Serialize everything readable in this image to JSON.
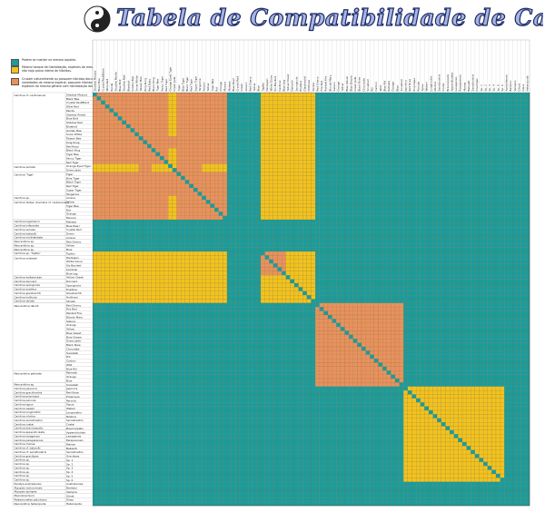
{
  "title": "Tabela de Compatibilidade de Camarões",
  "legend": [
    {
      "color": "#1a9c9c",
      "text": "Podem se manter no mesmo aquário."
    },
    {
      "color": "#f2c21e",
      "text": "Mesmo tanque de hibridização, espécies do mesmo gênero, embora não haja prova inteira de híbridos."
    },
    {
      "color": "#e9915c",
      "text": "Cruzam naturalmente ou possuem híbridos documentados, variedades da mesma espécie; possuem híbridos em crossover, ou espécies do mesmo gênero com hibridização documentada."
    }
  ],
  "chart_data": {
    "type": "heatmap",
    "colors": {
      "compatible": "#1a9c9c",
      "same_genus": "#f2c21e",
      "hybridize": "#e9915c",
      "diagonal": "#1a9c9c"
    },
    "left_groups": [
      {
        "label": "Caridina cf. cantonensis",
        "start": 0,
        "end": 17
      },
      {
        "label": "Caridina serrata",
        "start": 18,
        "end": 19
      },
      {
        "label": "Caridina 'Tiger'",
        "start": 20,
        "end": 25
      },
      {
        "label": "Caridina sp.",
        "start": 26,
        "end": 26
      },
      {
        "label": "Caridina 'Rotes' (Caridina cf. cantonensis)",
        "start": 27,
        "end": 31
      },
      {
        "label": "Caridina logemanni",
        "start": 32,
        "end": 32
      },
      {
        "label": "Caridina trifasciata",
        "start": 33,
        "end": 33
      },
      {
        "label": "Caridina serrata",
        "start": 34,
        "end": 34
      },
      {
        "label": "Caridina babaulti",
        "start": 35,
        "end": 35
      },
      {
        "label": "Caridina multidentata",
        "start": 36,
        "end": 36
      },
      {
        "label": "Neocaridina sp.",
        "start": 37,
        "end": 37
      },
      {
        "label": "Neocaridina sp.",
        "start": 38,
        "end": 38
      },
      {
        "label": "Neocaridina sp.",
        "start": 39,
        "end": 39
      },
      {
        "label": "Caridina sp. 'Tupfen'",
        "start": 40,
        "end": 40
      },
      {
        "label": "Caridina sulawesi",
        "start": 41,
        "end": 45
      },
      {
        "label": "Caridina woltereckae",
        "start": 46,
        "end": 46
      },
      {
        "label": "Caridina dennerli",
        "start": 47,
        "end": 47
      },
      {
        "label": "Caridina spongicola",
        "start": 48,
        "end": 48
      },
      {
        "label": "Caridina ensifera",
        "start": 49,
        "end": 49
      },
      {
        "label": "Caridina glaubrechti",
        "start": 50,
        "end": 50
      },
      {
        "label": "Caridina holthuisi",
        "start": 51,
        "end": 51
      },
      {
        "label": "Caridina striata",
        "start": 52,
        "end": 52
      },
      {
        "label": "Neocaridina davidi",
        "start": 53,
        "end": 69
      },
      {
        "label": "Neocaridina palmata",
        "start": 70,
        "end": 72
      },
      {
        "label": "Neocaridina sp.",
        "start": 73,
        "end": 73
      },
      {
        "label": "Caridina japonica",
        "start": 74,
        "end": 74
      },
      {
        "label": "Caridina gracilirostris",
        "start": 75,
        "end": 75
      },
      {
        "label": "Caridina propinqua",
        "start": 76,
        "end": 76
      },
      {
        "label": "Caridina parvula",
        "start": 77,
        "end": 77
      },
      {
        "label": "Caridina typus",
        "start": 78,
        "end": 78
      },
      {
        "label": "Caridina weberi",
        "start": 79,
        "end": 79
      },
      {
        "label": "Caridina longirostris",
        "start": 80,
        "end": 80
      },
      {
        "label": "Caridina nilotica",
        "start": 81,
        "end": 81
      },
      {
        "label": "Caridina serratirostris",
        "start": 82,
        "end": 82
      },
      {
        "label": "Caridina costai",
        "start": 83,
        "end": 83
      },
      {
        "label": "Caridina brevicarpalis",
        "start": 84,
        "end": 84
      },
      {
        "label": "Caridina appendiculata",
        "start": 85,
        "end": 85
      },
      {
        "label": "Caridina laoagensis",
        "start": 86,
        "end": 86
      },
      {
        "label": "Caridina pareparensis",
        "start": 87,
        "end": 87
      },
      {
        "label": "Caridina mariae",
        "start": 88,
        "end": 88
      },
      {
        "label": "Caridina cf. babaulti",
        "start": 89,
        "end": 89
      },
      {
        "label": "Caridina cf. serratirostris",
        "start": 90,
        "end": 90
      },
      {
        "label": "Caridina gracilipes",
        "start": 91,
        "end": 91
      },
      {
        "label": "Caridina sp.",
        "start": 92,
        "end": 92
      },
      {
        "label": "Caridina sp.",
        "start": 93,
        "end": 93
      },
      {
        "label": "Caridina sp.",
        "start": 94,
        "end": 94
      },
      {
        "label": "Caridina sp.",
        "start": 95,
        "end": 95
      },
      {
        "label": "Caridina sp.",
        "start": 96,
        "end": 96
      },
      {
        "label": "Caridina sp.",
        "start": 97,
        "end": 97
      },
      {
        "label": "Paratya australiensis",
        "start": 98,
        "end": 98
      },
      {
        "label": "Atyopsis moluccensis",
        "start": 99,
        "end": 99
      },
      {
        "label": "Atyopsis spinipes",
        "start": 100,
        "end": 100
      },
      {
        "label": "Macrobrachium",
        "start": 101,
        "end": 101
      },
      {
        "label": "Palaemonetes paludosus",
        "start": 102,
        "end": 102
      },
      {
        "label": "Neocaridina heteropoda",
        "start": 103,
        "end": 103
      }
    ],
    "row_names": [
      "Shadow Mosura",
      "Black Bee",
      "Crystal Red/Black",
      "Wine Red",
      "Panda",
      "Shadow Panda",
      "Blue Bolt",
      "Shadow Red",
      "Bluebolt",
      "Golden Bee",
      "Snow White",
      "Taiwan Bee",
      "King Kong",
      "Red Ruby",
      "Black King",
      "Tiger Bee",
      "Fancy Tiger",
      "Red Tiger",
      "Orange Eyed Tiger",
      "Green Jade",
      "Tiger",
      "Blue Tiger",
      "Black Tiger",
      "Red Tiger",
      "Super Tiger",
      "Tangerine",
      "Amano",
      "Yellow",
      "Tiger Bee",
      "Rot",
      "Orange",
      "Mosura",
      "Malawa",
      "Blue Pearl",
      "Crystal Red",
      "Green",
      "Amano",
      "Red Cherry",
      "Yellow",
      "Blue",
      "Tupfen",
      "Harlequin",
      "White Glove",
      "Six Banded",
      "Cardinal",
      "Blue Leg",
      "Yellow Cheek",
      "Dennerli",
      "Spongicola",
      "Ensifera",
      "Glaubrechti",
      "Holthuisi",
      "Striata",
      "Red Cherry",
      "Fire Red",
      "Painted Fire",
      "Bloody Mary",
      "Sakura",
      "Orange",
      "Yellow",
      "Blue Velvet",
      "Blue Dream",
      "Green Jade",
      "Black Rose",
      "Chocolate",
      "Snowball",
      "Rili",
      "Carbon",
      "Wild",
      "Blue Rili",
      "Palmata",
      "Orange",
      "Blue",
      "Snowball",
      "Japonica",
      "Red Nose",
      "Propinqua",
      "Parvula",
      "Typus",
      "Weberi",
      "Longirostris",
      "Nilotica",
      "Serratirostris",
      "Costai",
      "Brevicarpalis",
      "Appendiculata",
      "Laoagensis",
      "Pareparensis",
      "Mariae",
      "Babaulti",
      "Serratirostris",
      "Gracilipes",
      "Sp. 1",
      "Sp. 2",
      "Sp. 3",
      "Sp. 4",
      "Sp. 5",
      "Sp. 6",
      "Australiensis",
      "Bamboo",
      "Vampire",
      "Ghost",
      "Glass",
      "Heteropoda"
    ],
    "blocks_same_genus": [
      [
        0,
        52
      ],
      [
        53,
        73
      ],
      [
        74,
        97
      ]
    ],
    "blocks_hybridize": [
      [
        0,
        31
      ],
      [
        40,
        45
      ],
      [
        53,
        73
      ]
    ],
    "hybridize_stripes_cols": [
      [
        11,
        13
      ],
      [
        20,
        25
      ]
    ],
    "hybridize_stripes_rows": [
      [
        18,
        19
      ]
    ],
    "teal_lines": [
      32,
      33,
      34,
      35,
      36,
      37,
      38,
      39,
      98,
      99,
      100,
      101,
      102,
      103
    ]
  }
}
